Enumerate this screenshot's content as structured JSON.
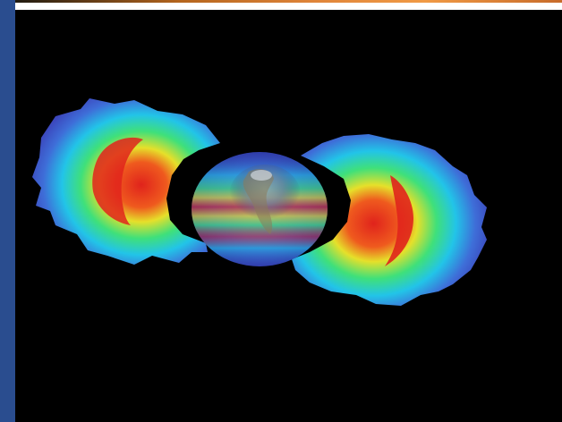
{
  "colors": {
    "background": "#000000",
    "left_border": "#2a4d8f",
    "top_edge": "#ffffff",
    "top_accent": "#e0853a",
    "belt_outer": "#4a5bd8",
    "belt_mid_cyan": "#22c4e8",
    "belt_green": "#3fe07a",
    "belt_yellow": "#e6e02a",
    "belt_core_red": "#e0231c",
    "earth_land": "#8a7a5a"
  },
  "icons": {
    "subject": "earth-globe-icon"
  }
}
